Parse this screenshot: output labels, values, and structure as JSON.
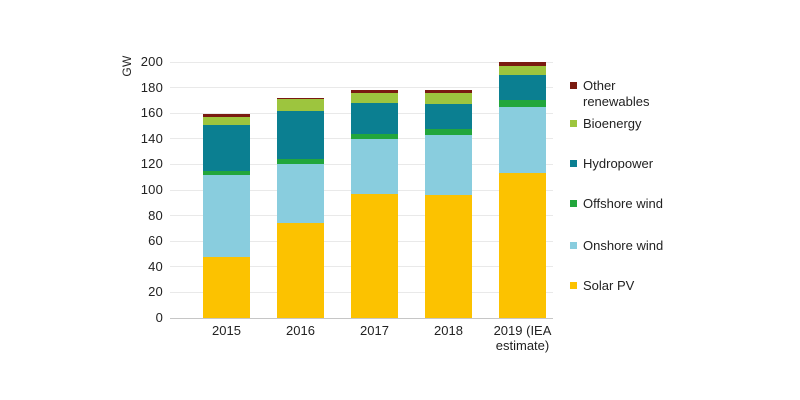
{
  "chart_data": {
    "type": "bar",
    "stacked": true,
    "title": "",
    "xlabel": "",
    "ylabel": "GW",
    "ylim": [
      0,
      200
    ],
    "ytick_step": 20,
    "grid": true,
    "categories": [
      "2015",
      "2016",
      "2017",
      "2018",
      "2019 (IEA estimate)"
    ],
    "series": [
      {
        "name": "Solar PV",
        "color": "#FCC200",
        "values": [
          48,
          74,
          97,
          96,
          113
        ]
      },
      {
        "name": "Onshore wind",
        "color": "#89CDDE",
        "values": [
          64,
          46,
          43,
          47,
          52
        ]
      },
      {
        "name": "Offshore wind",
        "color": "#22A63C",
        "values": [
          3,
          4,
          4,
          5,
          5
        ]
      },
      {
        "name": "Hydropower",
        "color": "#0B7F91",
        "values": [
          36,
          38,
          24,
          19,
          20
        ]
      },
      {
        "name": "Bioenergy",
        "color": "#9DC53E",
        "values": [
          6,
          9,
          8,
          9,
          7
        ]
      },
      {
        "name": "Other renewables",
        "color": "#7A1A10",
        "values": [
          2,
          1,
          2,
          2,
          3
        ]
      }
    ],
    "totals": [
      159,
      172,
      178,
      178,
      200
    ],
    "legend": {
      "position": "right",
      "order_top_to_bottom": [
        "Other renewables",
        "Bioenergy",
        "Hydropower",
        "Offshore wind",
        "Onshore wind",
        "Solar PV"
      ]
    }
  }
}
